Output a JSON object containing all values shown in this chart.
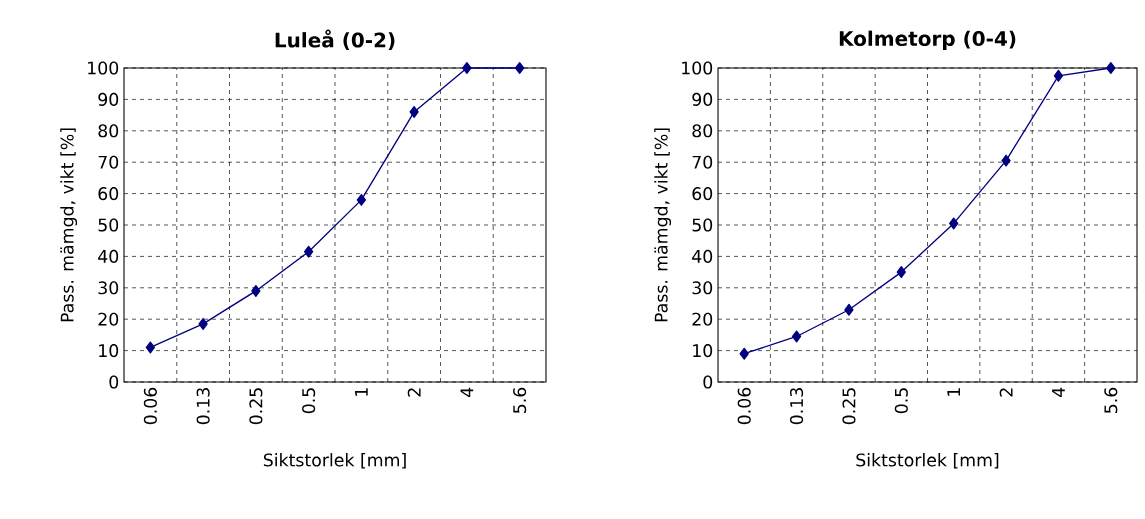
{
  "chart_data": [
    {
      "type": "line",
      "title": "Luleå (0-2)",
      "xlabel": "Siktstorlek [mm]",
      "ylabel": "Pass. mämgd, vikt [%]",
      "categories": [
        "0.06",
        "0.13",
        "0.25",
        "0.5",
        "1",
        "2",
        "4",
        "5.6"
      ],
      "series": [
        {
          "color": "#000080",
          "values": [
            11,
            18.5,
            29,
            41.5,
            58,
            86,
            100,
            100
          ]
        }
      ],
      "ylim": [
        0,
        100
      ],
      "yticks": [
        0,
        10,
        20,
        30,
        40,
        50,
        60,
        70,
        80,
        90,
        100
      ],
      "grid": true,
      "marker": "diamond",
      "line_style": "solid"
    },
    {
      "type": "line",
      "title": "Kolmetorp (0-4)",
      "xlabel": "Siktstorlek [mm]",
      "ylabel": "Pass. mämgd, vikt [%]",
      "categories": [
        "0.06",
        "0.13",
        "0.25",
        "0.5",
        "1",
        "2",
        "4",
        "5.6"
      ],
      "series": [
        {
          "color": "#000080",
          "values": [
            9,
            14.5,
            23,
            35,
            50.5,
            70.5,
            97.5,
            100
          ]
        }
      ],
      "ylim": [
        0,
        100
      ],
      "yticks": [
        0,
        10,
        20,
        30,
        40,
        50,
        60,
        70,
        80,
        90,
        100
      ],
      "grid": true,
      "marker": "diamond",
      "line_style": "solid"
    }
  ]
}
